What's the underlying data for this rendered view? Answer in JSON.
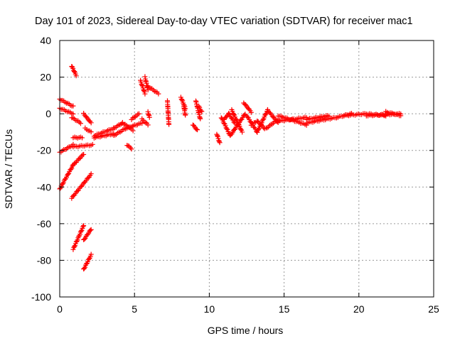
{
  "chart_data": {
    "type": "scatter",
    "title": "Day 101 of 2023, Sidereal Day-to-day VTEC variation (SDTVAR) for receiver mac1",
    "xlabel": "GPS time / hours",
    "ylabel": "SDTVAR / TECUs",
    "xlim": [
      0,
      25
    ],
    "ylim": [
      -100,
      40
    ],
    "xticks": [
      "0",
      "5",
      "10",
      "15",
      "20",
      "25"
    ],
    "yticks": [
      "40",
      "20",
      "0",
      "-20",
      "-40",
      "-60",
      "-80",
      "-100"
    ],
    "grid": true,
    "marker": "plus",
    "color": "#ff0000",
    "series": [
      {
        "name": "SDTVAR",
        "segments": [
          {
            "x0": 0.0,
            "y0": 8,
            "x1": 0.9,
            "y1": 4
          },
          {
            "x0": 0.0,
            "y0": 3,
            "x1": 0.9,
            "y1": 0
          },
          {
            "x0": 0.8,
            "y0": 26,
            "x1": 1.1,
            "y1": 21
          },
          {
            "x0": 0.0,
            "y0": -21,
            "x1": 0.9,
            "y1": -17
          },
          {
            "x0": 0.9,
            "y0": -18,
            "x1": 2.2,
            "y1": -17
          },
          {
            "x0": 0.0,
            "y0": -41,
            "x1": 0.9,
            "y1": -28
          },
          {
            "x0": 0.9,
            "y0": -28,
            "x1": 1.6,
            "y1": -22
          },
          {
            "x0": 0.8,
            "y0": -46,
            "x1": 2.1,
            "y1": -33
          },
          {
            "x0": 0.9,
            "y0": -74,
            "x1": 1.6,
            "y1": -61
          },
          {
            "x0": 1.6,
            "y0": -69,
            "x1": 2.1,
            "y1": -63
          },
          {
            "x0": 1.6,
            "y0": -85,
            "x1": 2.1,
            "y1": -77
          },
          {
            "x0": 0.8,
            "y0": -2,
            "x1": 1.4,
            "y1": -5
          },
          {
            "x0": 0.9,
            "y0": -13,
            "x1": 1.5,
            "y1": -13
          },
          {
            "x0": 1.6,
            "y0": 0,
            "x1": 2.1,
            "y1": -5
          },
          {
            "x0": 1.7,
            "y0": -8,
            "x1": 2.1,
            "y1": -10
          },
          {
            "x0": 2.3,
            "y0": -12,
            "x1": 3.6,
            "y1": -8
          },
          {
            "x0": 2.3,
            "y0": -13,
            "x1": 3.6,
            "y1": -11
          },
          {
            "x0": 3.6,
            "y0": -8,
            "x1": 4.2,
            "y1": -5
          },
          {
            "x0": 3.6,
            "y0": -12,
            "x1": 4.4,
            "y1": -8
          },
          {
            "x0": 4.2,
            "y0": -5,
            "x1": 4.9,
            "y1": -9
          },
          {
            "x0": 4.4,
            "y0": -8,
            "x1": 5.5,
            "y1": -5
          },
          {
            "x0": 4.8,
            "y0": -3,
            "x1": 5.3,
            "y1": 0
          },
          {
            "x0": 4.5,
            "y0": -17,
            "x1": 4.8,
            "y1": -19
          },
          {
            "x0": 5.4,
            "y0": 18,
            "x1": 5.7,
            "y1": 11
          },
          {
            "x0": 5.7,
            "y0": 20,
            "x1": 5.9,
            "y1": 13
          },
          {
            "x0": 5.5,
            "y0": -3,
            "x1": 5.9,
            "y1": -6
          },
          {
            "x0": 5.9,
            "y0": 1,
            "x1": 6.0,
            "y1": -2
          },
          {
            "x0": 5.9,
            "y0": 15,
            "x1": 6.6,
            "y1": 11
          },
          {
            "x0": 7.2,
            "y0": 7,
            "x1": 7.3,
            "y1": -6
          },
          {
            "x0": 8.1,
            "y0": 9,
            "x1": 8.4,
            "y1": 3
          },
          {
            "x0": 8.3,
            "y0": 4,
            "x1": 8.4,
            "y1": -1
          },
          {
            "x0": 8.9,
            "y0": -6,
            "x1": 9.2,
            "y1": -9
          },
          {
            "x0": 9.1,
            "y0": 7,
            "x1": 9.4,
            "y1": -3
          },
          {
            "x0": 9.3,
            "y0": 4,
            "x1": 9.5,
            "y1": 1
          },
          {
            "x0": 10.5,
            "y0": -11,
            "x1": 10.7,
            "y1": -16
          },
          {
            "x0": 10.8,
            "y0": -2,
            "x1": 11.4,
            "y1": -12
          },
          {
            "x0": 11.0,
            "y0": -3,
            "x1": 11.3,
            "y1": 0
          },
          {
            "x0": 11.4,
            "y0": -12,
            "x1": 11.9,
            "y1": -6
          },
          {
            "x0": 11.3,
            "y0": 0,
            "x1": 11.7,
            "y1": -5
          },
          {
            "x0": 11.5,
            "y0": 2,
            "x1": 12.2,
            "y1": -10
          },
          {
            "x0": 11.9,
            "y0": -6,
            "x1": 12.4,
            "y1": 0
          },
          {
            "x0": 12.3,
            "y0": 6,
            "x1": 12.8,
            "y1": 1
          },
          {
            "x0": 12.5,
            "y0": -1,
            "x1": 13.2,
            "y1": -10
          },
          {
            "x0": 12.8,
            "y0": -6,
            "x1": 13.2,
            "y1": -4
          },
          {
            "x0": 13.2,
            "y0": -10,
            "x1": 13.9,
            "y1": 2
          },
          {
            "x0": 13.2,
            "y0": -4,
            "x1": 13.7,
            "y1": -8
          },
          {
            "x0": 13.9,
            "y0": 2,
            "x1": 14.6,
            "y1": -5
          },
          {
            "x0": 13.8,
            "y0": -8,
            "x1": 14.6,
            "y1": -3
          },
          {
            "x0": 14.6,
            "y0": -4,
            "x1": 16.5,
            "y1": -2
          },
          {
            "x0": 14.6,
            "y0": -1,
            "x1": 16.5,
            "y1": -6
          },
          {
            "x0": 16.5,
            "y0": -3,
            "x1": 18.0,
            "y1": -1
          },
          {
            "x0": 16.5,
            "y0": -5,
            "x1": 18.5,
            "y1": -2
          },
          {
            "x0": 18.5,
            "y0": -2,
            "x1": 19.5,
            "y1": 0
          },
          {
            "x0": 19.0,
            "y0": -1,
            "x1": 20.5,
            "y1": 0
          },
          {
            "x0": 20.5,
            "y0": 0,
            "x1": 21.8,
            "y1": -1
          },
          {
            "x0": 20.5,
            "y0": -1,
            "x1": 22.8,
            "y1": 0
          },
          {
            "x0": 21.8,
            "y0": 1,
            "x1": 22.8,
            "y1": -1
          }
        ]
      }
    ]
  }
}
